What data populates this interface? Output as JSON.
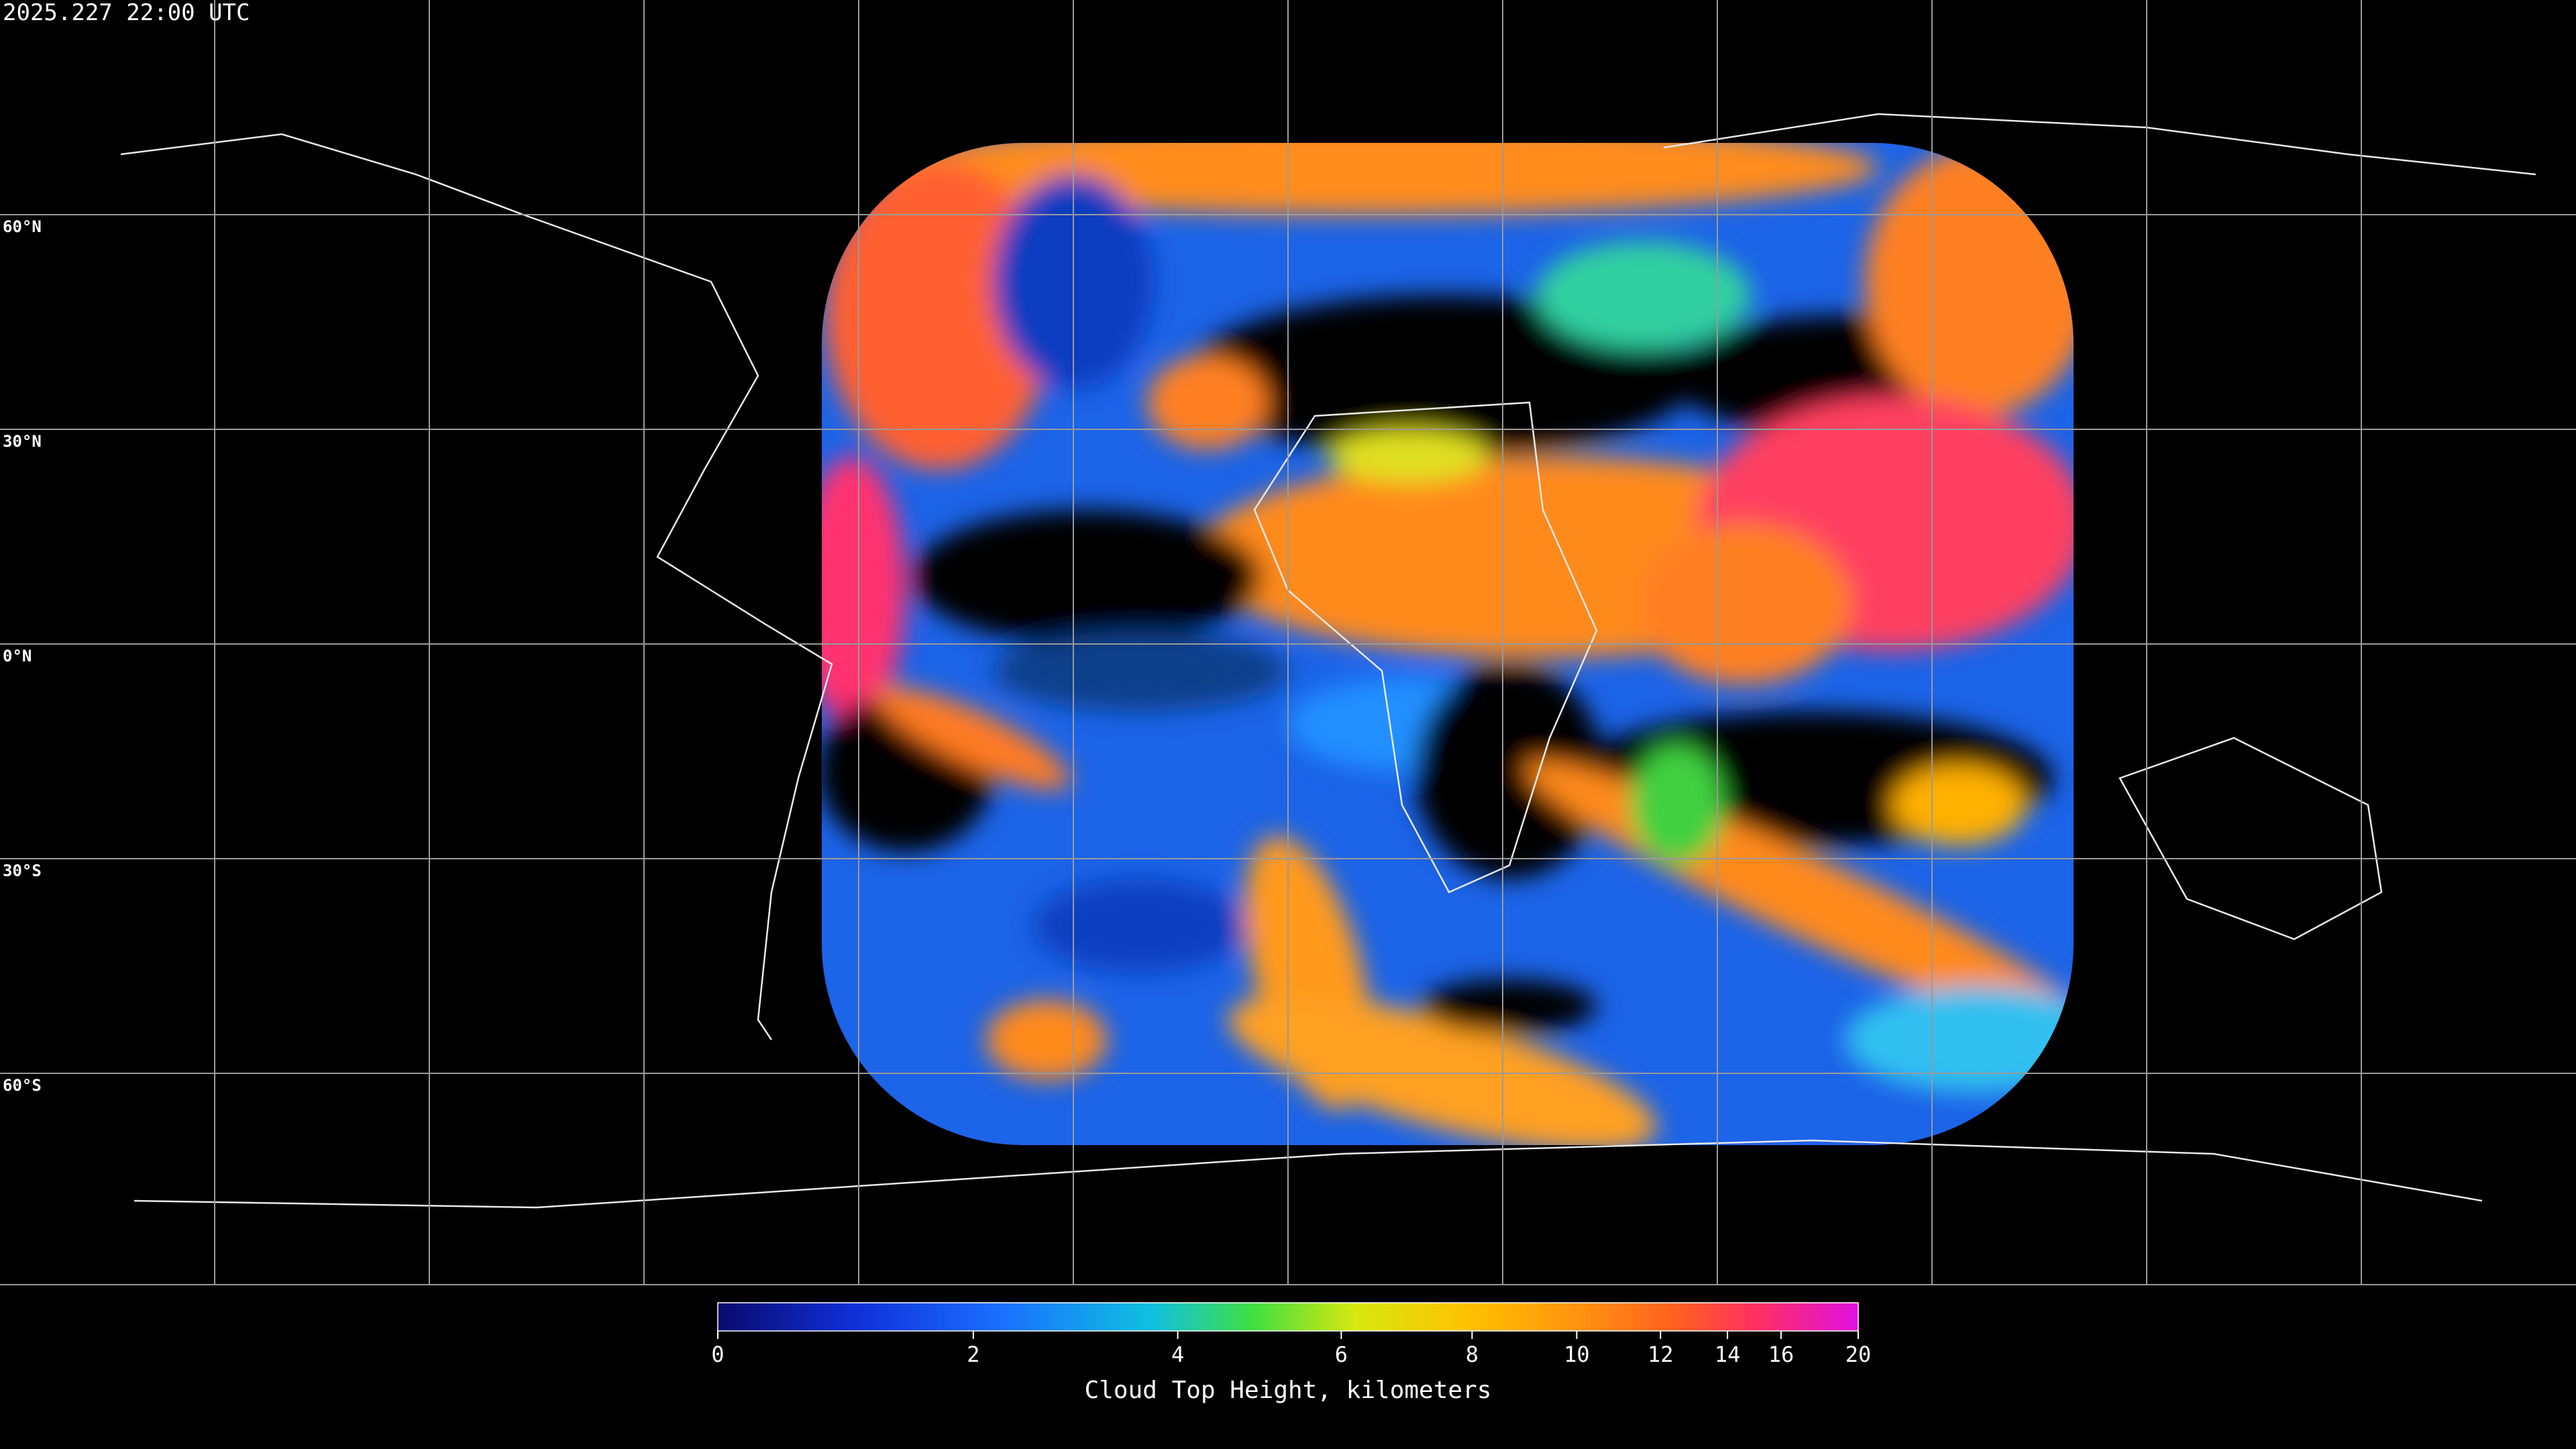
{
  "header": {
    "timestamp": "2025.227 22:00 UTC"
  },
  "map": {
    "latitude_lines": [
      {
        "value": 60,
        "label": "60°N"
      },
      {
        "value": 30,
        "label": "30°N"
      },
      {
        "value": 0,
        "label": "0°N"
      },
      {
        "value": -30,
        "label": "30°S"
      },
      {
        "value": -60,
        "label": "60°S"
      }
    ]
  },
  "colorbar": {
    "title": "Cloud Top Height, kilometers",
    "range": [
      0,
      20
    ],
    "ticks": [
      0,
      2,
      4,
      6,
      8,
      10,
      12,
      14,
      16,
      20
    ]
  }
}
